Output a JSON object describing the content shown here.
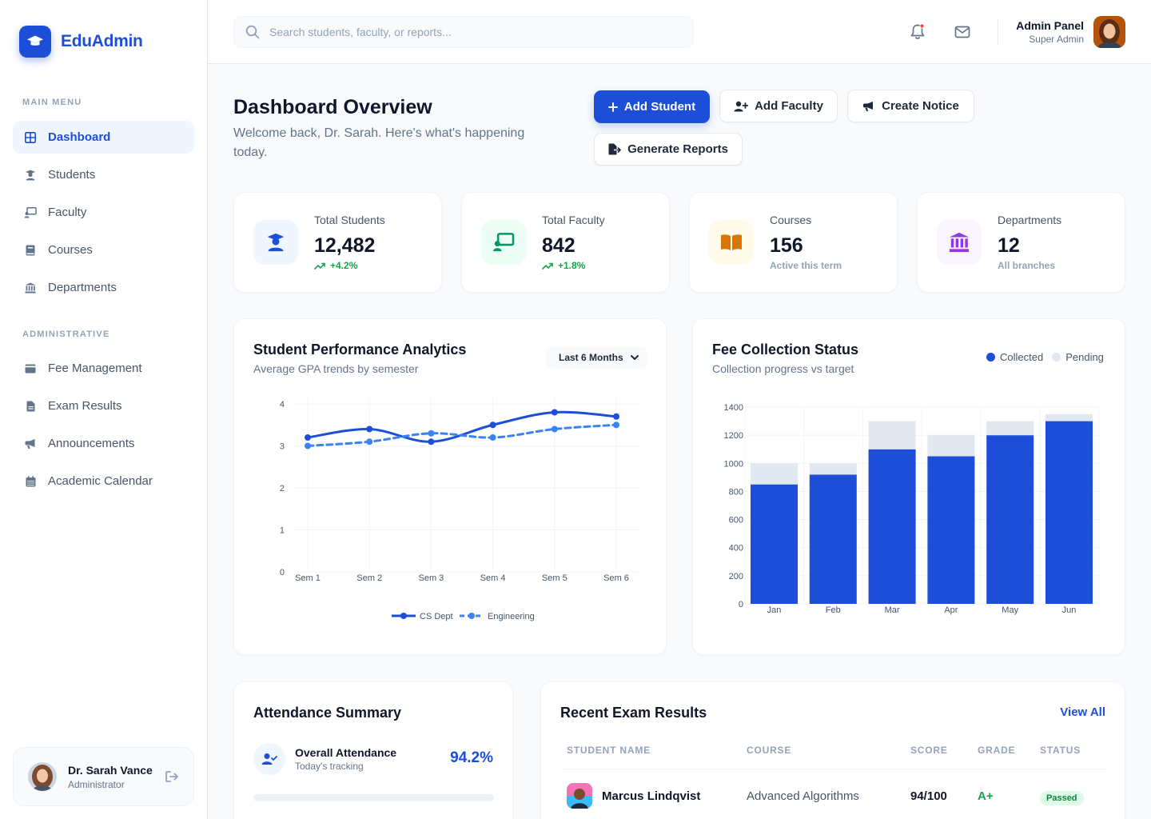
{
  "brand": {
    "name": "EduAdmin"
  },
  "sidebar": {
    "main_menu_title": "MAIN MENU",
    "admin_title": "ADMINISTRATIVE",
    "main_items": [
      {
        "label": "Dashboard",
        "icon": "grid-icon",
        "active": true
      },
      {
        "label": "Students",
        "icon": "user-graduate-icon"
      },
      {
        "label": "Faculty",
        "icon": "chalkboard-teacher-icon"
      },
      {
        "label": "Courses",
        "icon": "book-icon"
      },
      {
        "label": "Departments",
        "icon": "building-columns-icon"
      }
    ],
    "admin_items": [
      {
        "label": "Fee Management",
        "icon": "wallet-icon"
      },
      {
        "label": "Exam Results",
        "icon": "file-lines-icon"
      },
      {
        "label": "Announcements",
        "icon": "bullhorn-icon"
      },
      {
        "label": "Academic Calendar",
        "icon": "calendar-icon"
      }
    ],
    "profile": {
      "name": "Dr. Sarah Vance",
      "role": "Administrator"
    }
  },
  "header": {
    "search_placeholder": "Search students, faculty, or reports...",
    "admin_name": "Admin Panel",
    "admin_role": "Super Admin"
  },
  "page": {
    "title": "Dashboard Overview",
    "subtitle": "Welcome back, Dr. Sarah. Here's what's happening today."
  },
  "actions": {
    "add_student": "Add Student",
    "add_faculty": "Add Faculty",
    "create_notice": "Create Notice",
    "generate_reports": "Generate Reports"
  },
  "stats": [
    {
      "label": "Total Students",
      "value": "12,482",
      "trend": "+4.2%"
    },
    {
      "label": "Total Faculty",
      "value": "842",
      "trend": "+1.8%"
    },
    {
      "label": "Courses",
      "value": "156",
      "note": "Active this term"
    },
    {
      "label": "Departments",
      "value": "12",
      "note": "All branches"
    }
  ],
  "colors": {
    "primary": "#1d4ed8",
    "secondary_line": "#3b82f6",
    "pending": "#e2e8f0",
    "success": "#16a34a"
  },
  "performance": {
    "title": "Student Performance Analytics",
    "subtitle": "Average GPA trends by semester",
    "filter": "Last 6 Months"
  },
  "fees": {
    "title": "Fee Collection Status",
    "subtitle": "Collection progress vs target"
  },
  "chart_data": [
    {
      "type": "line",
      "categories": [
        "Sem 1",
        "Sem 2",
        "Sem 3",
        "Sem 4",
        "Sem 5",
        "Sem 6"
      ],
      "series": [
        {
          "name": "CS Dept",
          "values": [
            3.2,
            3.4,
            3.1,
            3.5,
            3.8,
            3.7
          ]
        },
        {
          "name": "Engineering",
          "values": [
            3.0,
            3.1,
            3.3,
            3.2,
            3.4,
            3.5
          ]
        }
      ],
      "yticks": [
        0,
        1,
        2,
        3,
        4
      ],
      "ylim": [
        0,
        4
      ],
      "legend": "bottom"
    },
    {
      "type": "bar",
      "stacked": true,
      "categories": [
        "Jan",
        "Feb",
        "Mar",
        "Apr",
        "May",
        "Jun"
      ],
      "series": [
        {
          "name": "Collected",
          "values": [
            850,
            920,
            1100,
            1050,
            1200,
            1300
          ]
        },
        {
          "name": "Pending",
          "values": [
            150,
            80,
            200,
            150,
            100,
            50
          ]
        }
      ],
      "yticks": [
        0,
        200,
        400,
        600,
        800,
        1000,
        1200,
        1400
      ],
      "ylim": [
        0,
        1400
      ],
      "legend": "top-right"
    }
  ],
  "attendance": {
    "title": "Attendance Summary",
    "label": "Overall Attendance",
    "sub": "Today's tracking",
    "value": "94.2%",
    "progress": 0
  },
  "exams": {
    "title": "Recent Exam Results",
    "view_all": "View All",
    "columns": [
      "STUDENT NAME",
      "COURSE",
      "SCORE",
      "GRADE",
      "STATUS"
    ],
    "rows": [
      {
        "name": "Marcus Lindqvist",
        "course": "Advanced Algorithms",
        "score": "94/100",
        "grade": "A+",
        "status": "Passed"
      }
    ]
  }
}
